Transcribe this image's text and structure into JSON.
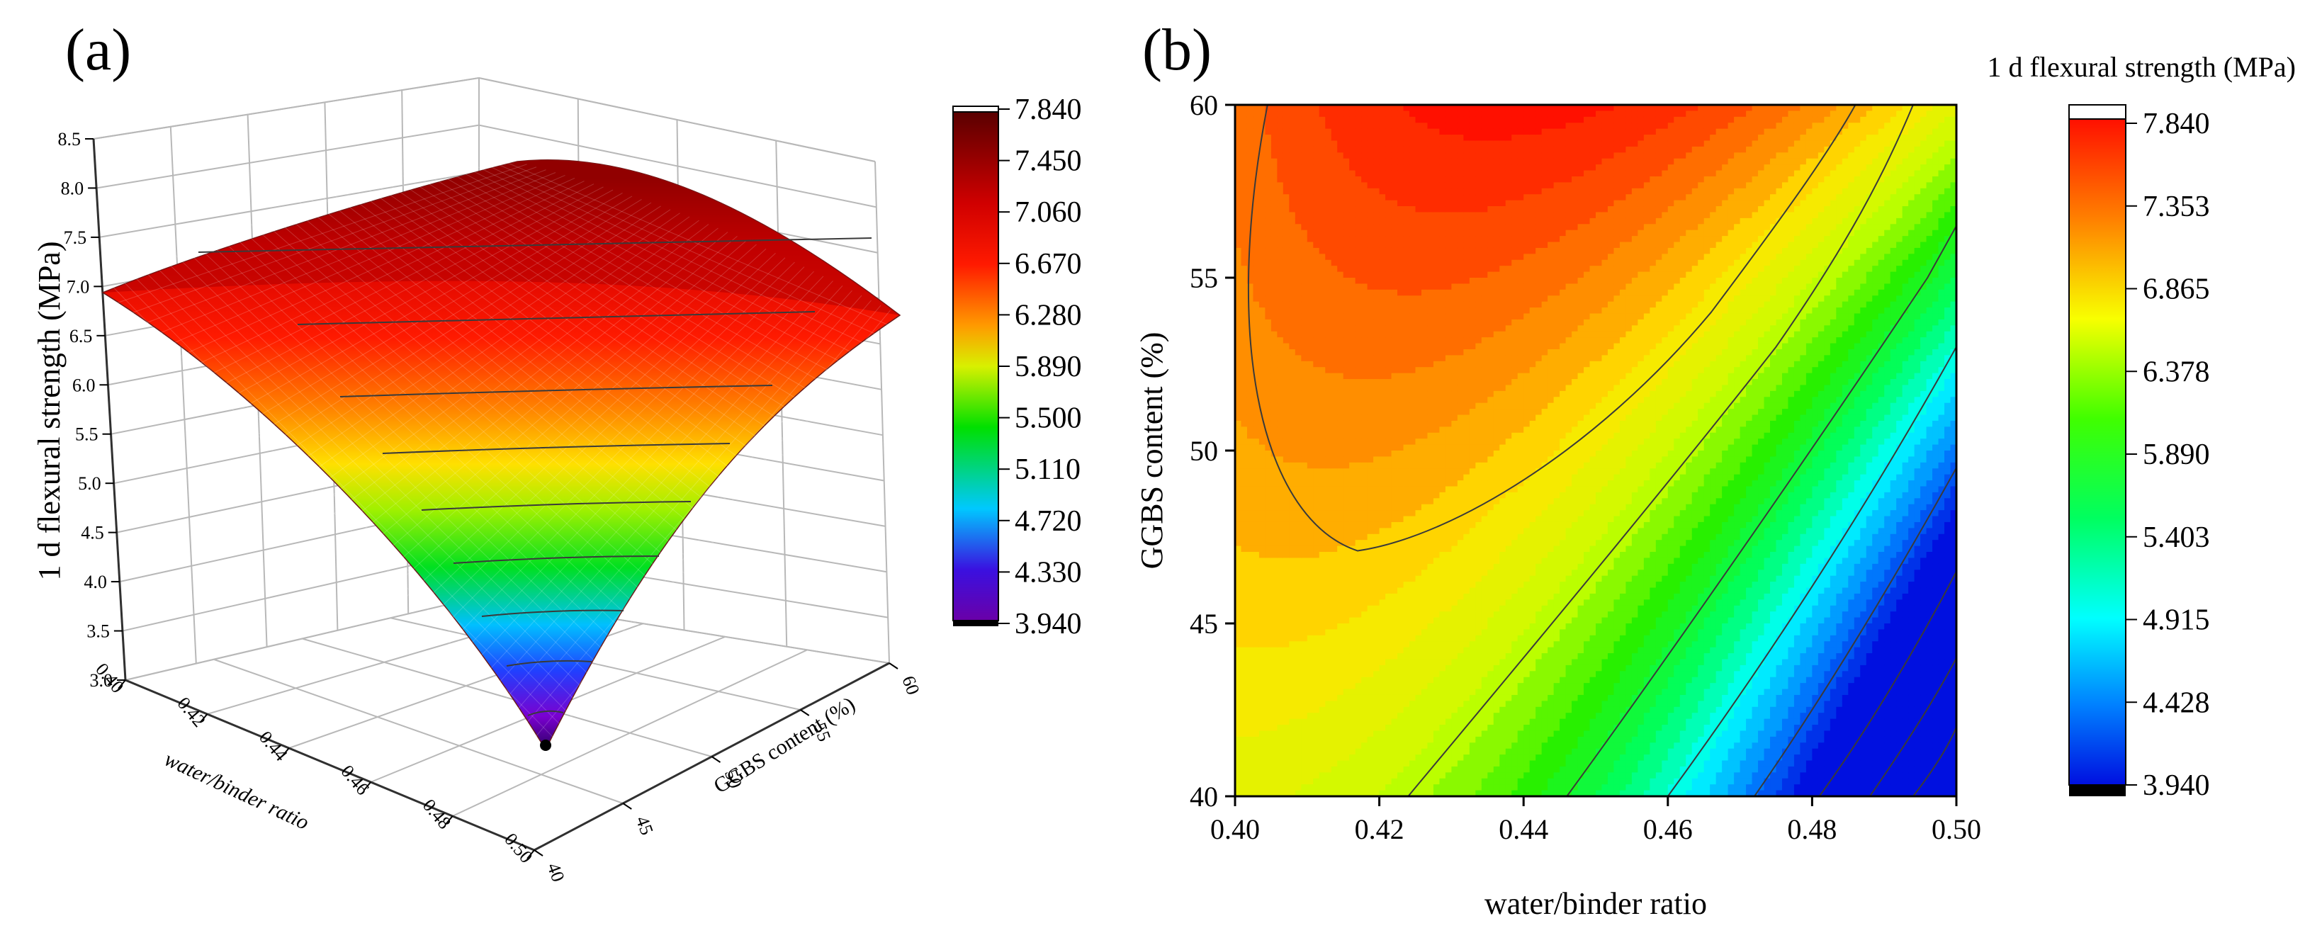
{
  "chart_data": [
    {
      "panel": "(a)",
      "type": "surface3d",
      "title": "",
      "xlabel": "water/binder ratio",
      "ylabel": "GGBS content (%)",
      "zlabel": "1 d flexural strength (MPa)",
      "x_ticks": [
        "0.40",
        "0.42",
        "0.44",
        "0.46",
        "0.48",
        "0.50"
      ],
      "y_ticks": [
        "40",
        "45",
        "50",
        "55",
        "60"
      ],
      "z_ticks": [
        "3.0",
        "3.5",
        "4.0",
        "4.5",
        "5.0",
        "5.5",
        "6.0",
        "6.5",
        "7.0",
        "7.5",
        "8.0",
        "8.5"
      ],
      "xlim": [
        0.4,
        0.5
      ],
      "ylim": [
        40,
        60
      ],
      "zlim": [
        3.0,
        8.5
      ],
      "colorbar": {
        "ticks": [
          "7.840",
          "7.450",
          "7.060",
          "6.670",
          "6.280",
          "5.890",
          "5.500",
          "5.110",
          "4.720",
          "4.330",
          "3.940"
        ],
        "range": [
          3.94,
          7.84
        ]
      },
      "corner_values": [
        {
          "wb": 0.4,
          "ggbs": 40,
          "strength": 6.95
        },
        {
          "wb": 0.4,
          "ggbs": 60,
          "strength": 7.0
        },
        {
          "wb": 0.5,
          "ggbs": 60,
          "strength": 6.85
        },
        {
          "wb": 0.5,
          "ggbs": 40,
          "strength": 3.94
        }
      ]
    },
    {
      "panel": "(b)",
      "type": "contour",
      "title": "1 d flexural strength (MPa)",
      "xlabel": "water/binder ratio",
      "ylabel": "GGBS content (%)",
      "x_ticks": [
        "0.40",
        "0.42",
        "0.44",
        "0.46",
        "0.48",
        "0.50"
      ],
      "y_ticks": [
        "40",
        "45",
        "50",
        "55",
        "60"
      ],
      "xlim": [
        0.4,
        0.5
      ],
      "ylim": [
        40,
        60
      ],
      "colorbar": {
        "ticks": [
          "7.840",
          "7.353",
          "6.865",
          "6.378",
          "5.890",
          "5.403",
          "4.915",
          "4.428",
          "3.940"
        ],
        "range": [
          3.94,
          7.84
        ]
      },
      "maximum": {
        "wb": 0.44,
        "ggbs": 60,
        "strength": 7.84
      },
      "minimum": {
        "wb": 0.5,
        "ggbs": 40,
        "strength": 3.94
      }
    }
  ]
}
